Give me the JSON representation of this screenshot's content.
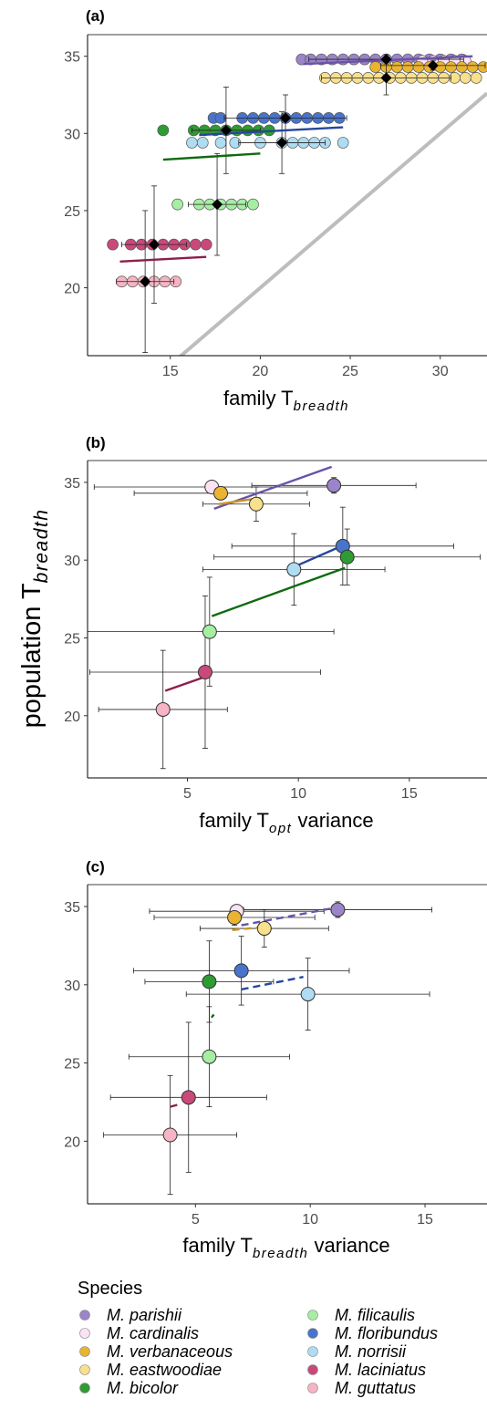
{
  "colors": {
    "M. parishii": "#9b84c9",
    "M. cardinalis": "#fbe3f5",
    "M. verbanaceous": "#eab431",
    "M. eastwoodiae": "#f8e08d",
    "M. bicolor": "#2e9b33",
    "M. filicaulis": "#a5eea2",
    "M. floribundus": "#4874cc",
    "M. norrisii": "#aedcf2",
    "M. laciniatus": "#c9497b",
    "M. guttatus": "#f6b4c4"
  },
  "line_colors": {
    "M. parishii": "#6a52a8",
    "M. verbanaceous": "#c9952a",
    "M. bicolor": "#0f6a0f",
    "M. floribundus": "#25469c",
    "M. laciniatus": "#8c1f4c"
  },
  "legend": {
    "title": "Species",
    "items": [
      "M. parishii",
      "M. cardinalis",
      "M. verbanaceous",
      "M. eastwoodiae",
      "M. bicolor",
      "M. filicaulis",
      "M. floribundus",
      "M. norrisii",
      "M. laciniatus",
      "M. guttatus"
    ]
  },
  "shared_ylabel": {
    "main": "population T",
    "sub": "breadth"
  },
  "chart_data": [
    {
      "panel": "(a)",
      "type": "scatter",
      "xlabel": {
        "main": "family T",
        "sub": "breadth",
        "suffix": ""
      },
      "ylabel": "",
      "xlim": [
        10.4,
        32.6
      ],
      "ylim": [
        15.6,
        36.4
      ],
      "xticks": [
        15,
        20,
        25,
        30
      ],
      "yticks": [
        20,
        25,
        30,
        35
      ],
      "reference_line": {
        "slope": 1,
        "intercept": 0,
        "label": "1:1"
      },
      "families": [
        {
          "species": "M. parishii",
          "y": 34.8,
          "x": [
            22.3,
            22.8,
            23.4,
            24.0,
            24.6,
            25.2,
            25.8,
            26.4,
            27.0,
            27.6,
            28.2,
            28.8,
            29.4,
            30.0,
            30.6,
            31.2
          ]
        },
        {
          "species": "M. cardinalis",
          "y": 34.7,
          "x": [
            29.0,
            29.6,
            30.2,
            30.8,
            31.4
          ]
        },
        {
          "species": "M. verbanaceous",
          "y": 34.3,
          "x": [
            26.4,
            27.0,
            27.6,
            28.2,
            28.8,
            29.4,
            30.0,
            30.6,
            31.2,
            31.8,
            32.4
          ]
        },
        {
          "species": "M. eastwoodiae",
          "y": 33.6,
          "x": [
            23.6,
            24.2,
            24.8,
            25.4,
            26.0,
            26.6,
            27.2,
            27.8,
            28.4,
            29.0,
            29.6,
            30.2,
            30.8,
            31.4,
            32.0
          ]
        },
        {
          "species": "M. bicolor",
          "y": 30.2,
          "x": [
            14.6,
            16.3,
            16.9,
            17.5,
            18.1,
            18.7,
            19.3,
            19.9,
            20.5
          ]
        },
        {
          "species": "M. floribundus",
          "y": 31.0,
          "x": [
            17.4,
            17.8,
            19.0,
            19.6,
            20.2,
            20.8,
            21.4,
            22.0,
            22.6,
            23.2,
            23.8,
            24.4
          ]
        },
        {
          "species": "M. norrisii",
          "y": 29.4,
          "x": [
            16.2,
            16.8,
            17.8,
            18.6,
            20.0,
            21.2,
            21.8,
            22.4,
            23.0,
            23.6,
            24.6
          ]
        },
        {
          "species": "M. filicaulis",
          "y": 25.4,
          "x": [
            15.4,
            16.6,
            17.2,
            17.8,
            18.4,
            19.0,
            19.6
          ]
        },
        {
          "species": "M. laciniatus",
          "y": 22.8,
          "x": [
            11.8,
            12.8,
            13.4,
            14.0,
            14.6,
            15.2,
            15.8,
            16.4,
            17.0
          ]
        },
        {
          "species": "M. guttatus",
          "y": 20.4,
          "x": [
            12.3,
            12.9,
            13.5,
            14.1,
            14.7,
            15.3
          ]
        }
      ],
      "means": [
        {
          "species": "M. parishii",
          "x": 27.0,
          "y": 34.8,
          "xerr": 4.3,
          "yerr": 0.3
        },
        {
          "species": "M. verbanaceous",
          "x": 29.6,
          "y": 34.4,
          "xerr": 2.9,
          "yerr": 0.3
        },
        {
          "species": "M. eastwoodiae",
          "x": 27.0,
          "y": 33.6,
          "xerr": 3.6,
          "yerr": 1.1
        },
        {
          "species": "M. floribundus",
          "x": 21.4,
          "y": 31.0,
          "xerr": 3.4,
          "yerr": 1.5
        },
        {
          "species": "M. bicolor",
          "x": 18.1,
          "y": 30.2,
          "xerr": 1.9,
          "yerr": 2.8
        },
        {
          "species": "M. norrisii",
          "x": 21.2,
          "y": 29.4,
          "xerr": 2.4,
          "yerr": 2.0
        },
        {
          "species": "M. filicaulis",
          "x": 17.6,
          "y": 25.4,
          "xerr": 1.6,
          "yerr": 3.3
        },
        {
          "species": "M. laciniatus",
          "x": 14.1,
          "y": 22.8,
          "xerr": 1.8,
          "yerr": 3.8
        },
        {
          "species": "M. guttatus",
          "x": 13.6,
          "y": 20.4,
          "xerr": 1.6,
          "yerr": 4.6
        }
      ],
      "fit_lines": [
        {
          "species": "M. parishii",
          "x": [
            22.4,
            31.8
          ],
          "y": [
            34.5,
            35.0
          ],
          "dashed": false
        },
        {
          "species": "M. floribundus",
          "x": [
            16.6,
            24.6
          ],
          "y": [
            29.9,
            30.4
          ],
          "dashed": false
        },
        {
          "species": "M. bicolor",
          "x": [
            14.6,
            20.0
          ],
          "y": [
            28.3,
            28.7
          ],
          "dashed": false
        },
        {
          "species": "M. laciniatus",
          "x": [
            12.2,
            17.0
          ],
          "y": [
            21.7,
            22.0
          ],
          "dashed": false
        }
      ]
    },
    {
      "panel": "(b)",
      "type": "scatter",
      "xlabel": {
        "main": "family T",
        "sub": "opt",
        "suffix": " variance"
      },
      "ylabel": "",
      "xlim": [
        0.5,
        18.5
      ],
      "ylim": [
        16.0,
        36.4
      ],
      "xticks": [
        5,
        10,
        15
      ],
      "yticks": [
        20,
        25,
        30,
        35
      ],
      "means": [
        {
          "species": "M. cardinalis",
          "x": 6.1,
          "y": 34.7,
          "xerr": 5.3,
          "yerr": 0.4
        },
        {
          "species": "M. parishii",
          "x": 11.6,
          "y": 34.8,
          "xerr": 3.7,
          "yerr": 0.5
        },
        {
          "species": "M. verbanaceous",
          "x": 6.5,
          "y": 34.3,
          "xerr": 3.9,
          "yerr": 0.4
        },
        {
          "species": "M. eastwoodiae",
          "x": 8.1,
          "y": 33.6,
          "xerr": 2.4,
          "yerr": 1.1
        },
        {
          "species": "M. floribundus",
          "x": 12.0,
          "y": 30.9,
          "xerr": 5.0,
          "yerr": 2.5
        },
        {
          "species": "M. bicolor",
          "x": 12.2,
          "y": 30.2,
          "xerr": 6.0,
          "yerr": 1.8
        },
        {
          "species": "M. norrisii",
          "x": 9.8,
          "y": 29.4,
          "xerr": 4.1,
          "yerr": 2.3
        },
        {
          "species": "M. filicaulis",
          "x": 6.0,
          "y": 25.4,
          "xerr": 5.6,
          "yerr": 3.5
        },
        {
          "species": "M. laciniatus",
          "x": 5.8,
          "y": 22.8,
          "xerr": 5.2,
          "yerr": 4.9
        },
        {
          "species": "M. guttatus",
          "x": 3.9,
          "y": 20.4,
          "xerr": 2.9,
          "yerr": 3.8
        }
      ],
      "fit_lines": [
        {
          "species": "M. parishii",
          "x": [
            6.2,
            11.5
          ],
          "y": [
            33.3,
            36.0
          ],
          "dashed": false
        },
        {
          "species": "M. verbanaceous",
          "x": [
            6.4,
            8.3
          ],
          "y": [
            33.6,
            34.0
          ],
          "dashed": false
        },
        {
          "species": "M. floribundus",
          "x": [
            9.7,
            12.1
          ],
          "y": [
            29.5,
            31.0
          ],
          "dashed": false
        },
        {
          "species": "M. bicolor",
          "x": [
            6.1,
            12.1
          ],
          "y": [
            26.4,
            29.5
          ],
          "dashed": false
        },
        {
          "species": "M. laciniatus",
          "x": [
            4.0,
            5.8
          ],
          "y": [
            21.6,
            22.5
          ],
          "dashed": false
        }
      ]
    },
    {
      "panel": "(c)",
      "type": "scatter",
      "xlabel": {
        "main": "family T",
        "sub": "breadth",
        "suffix": " variance"
      },
      "ylabel": "",
      "xlim": [
        0.3,
        17.7
      ],
      "ylim": [
        16.0,
        36.4
      ],
      "xticks": [
        5,
        10,
        15
      ],
      "yticks": [
        20,
        25,
        30,
        35
      ],
      "means": [
        {
          "species": "M. cardinalis",
          "x": 6.8,
          "y": 34.7,
          "xerr": 3.8,
          "yerr": 0.3
        },
        {
          "species": "M. parishii",
          "x": 11.2,
          "y": 34.8,
          "xerr": 4.1,
          "yerr": 0.5
        },
        {
          "species": "M. verbanaceous",
          "x": 6.7,
          "y": 34.3,
          "xerr": 3.5,
          "yerr": 0.5
        },
        {
          "species": "M. eastwoodiae",
          "x": 8.0,
          "y": 33.6,
          "xerr": 2.8,
          "yerr": 1.2
        },
        {
          "species": "M. floribundus",
          "x": 7.0,
          "y": 30.9,
          "xerr": 4.7,
          "yerr": 2.2
        },
        {
          "species": "M. bicolor",
          "x": 5.6,
          "y": 30.2,
          "xerr": 2.8,
          "yerr": 2.6
        },
        {
          "species": "M. norrisii",
          "x": 9.9,
          "y": 29.4,
          "xerr": 5.3,
          "yerr": 2.3
        },
        {
          "species": "M. filicaulis",
          "x": 5.6,
          "y": 25.4,
          "xerr": 3.5,
          "yerr": 3.2
        },
        {
          "species": "M. laciniatus",
          "x": 4.7,
          "y": 22.8,
          "xerr": 3.4,
          "yerr": 4.8
        },
        {
          "species": "M. guttatus",
          "x": 3.9,
          "y": 20.4,
          "xerr": 2.9,
          "yerr": 3.8
        }
      ],
      "fit_lines": [
        {
          "species": "M. parishii",
          "x": [
            7.0,
            11.0
          ],
          "y": [
            33.8,
            34.9
          ],
          "dashed": true
        },
        {
          "species": "M. verbanaceous",
          "x": [
            6.6,
            8.1
          ],
          "y": [
            33.5,
            33.7
          ],
          "dashed": true
        },
        {
          "species": "M. floribundus",
          "x": [
            7.0,
            9.7
          ],
          "y": [
            29.7,
            30.5
          ],
          "dashed": true
        },
        {
          "species": "M. bicolor",
          "x": [
            5.7,
            5.8
          ],
          "y": [
            27.9,
            28.1
          ],
          "dashed": true
        },
        {
          "species": "M. laciniatus",
          "x": [
            3.9,
            4.4
          ],
          "y": [
            22.2,
            22.4
          ],
          "dashed": true
        }
      ]
    }
  ]
}
